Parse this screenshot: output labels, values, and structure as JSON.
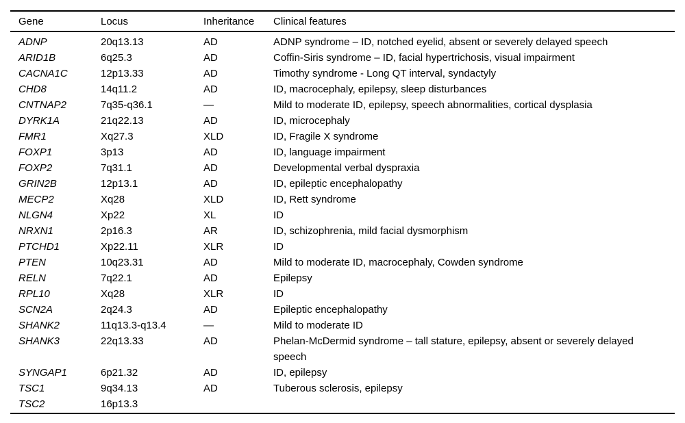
{
  "table": {
    "columns": [
      "Gene",
      "Locus",
      "Inheritance",
      "Clinical features"
    ],
    "rows": [
      {
        "gene": "ADNP",
        "locus": "20q13.13",
        "inheritance": "AD",
        "clinical": "ADNP syndrome – ID, notched eyelid, absent or severely delayed speech"
      },
      {
        "gene": "ARID1B",
        "locus": "6q25.3",
        "inheritance": "AD",
        "clinical": "Coffin-Siris syndrome – ID, facial hypertrichosis, visual impairment"
      },
      {
        "gene": "CACNA1C",
        "locus": "12p13.33",
        "inheritance": "AD",
        "clinical": "Timothy syndrome - Long QT interval, syndactyly"
      },
      {
        "gene": "CHD8",
        "locus": "14q11.2",
        "inheritance": "AD",
        "clinical": "ID, macrocephaly, epilepsy, sleep disturbances"
      },
      {
        "gene": "CNTNAP2",
        "locus": "7q35-q36.1",
        "inheritance": "—",
        "clinical": "Mild to moderate ID, epilepsy, speech abnormalities, cortical dysplasia"
      },
      {
        "gene": "DYRK1A",
        "locus": "21q22.13",
        "inheritance": "AD",
        "clinical": "ID, microcephaly"
      },
      {
        "gene": "FMR1",
        "locus": "Xq27.3",
        "inheritance": "XLD",
        "clinical": "ID, Fragile X syndrome"
      },
      {
        "gene": "FOXP1",
        "locus": "3p13",
        "inheritance": "AD",
        "clinical": "ID, language impairment"
      },
      {
        "gene": "FOXP2",
        "locus": "7q31.1",
        "inheritance": "AD",
        "clinical": "Developmental verbal dyspraxia"
      },
      {
        "gene": "GRIN2B",
        "locus": "12p13.1",
        "inheritance": "AD",
        "clinical": "ID, epileptic encephalopathy"
      },
      {
        "gene": "MECP2",
        "locus": "Xq28",
        "inheritance": "XLD",
        "clinical": "ID, Rett syndrome"
      },
      {
        "gene": "NLGN4",
        "locus": "Xp22",
        "inheritance": "XL",
        "clinical": "ID"
      },
      {
        "gene": "NRXN1",
        "locus": "2p16.3",
        "inheritance": "AR",
        "clinical": "ID, schizophrenia, mild facial dysmorphism"
      },
      {
        "gene": "PTCHD1",
        "locus": "Xp22.11",
        "inheritance": "XLR",
        "clinical": "ID"
      },
      {
        "gene": "PTEN",
        "locus": "10q23.31",
        "inheritance": "AD",
        "clinical": "Mild to moderate ID, macrocephaly, Cowden syndrome"
      },
      {
        "gene": "RELN",
        "locus": "7q22.1",
        "inheritance": "AD",
        "clinical": "Epilepsy"
      },
      {
        "gene": "RPL10",
        "locus": "Xq28",
        "inheritance": "XLR",
        "clinical": "ID"
      },
      {
        "gene": "SCN2A",
        "locus": "2q24.3",
        "inheritance": "AD",
        "clinical": "Epileptic encephalopathy"
      },
      {
        "gene": "SHANK2",
        "locus": "11q13.3-q13.4",
        "inheritance": "—",
        "clinical": "Mild to moderate ID"
      },
      {
        "gene": "SHANK3",
        "locus": "22q13.33",
        "inheritance": "AD",
        "clinical": "Phelan-McDermid syndrome – tall stature, epilepsy, absent or severely delayed speech"
      },
      {
        "gene": "SYNGAP1",
        "locus": "6p21.32",
        "inheritance": "AD",
        "clinical": "ID, epilepsy"
      },
      {
        "gene": "TSC1",
        "locus": "9q34.13",
        "inheritance": "AD",
        "clinical": "Tuberous sclerosis, epilepsy"
      },
      {
        "gene": "TSC2",
        "locus": "16p13.3",
        "inheritance": "",
        "clinical": ""
      }
    ]
  }
}
